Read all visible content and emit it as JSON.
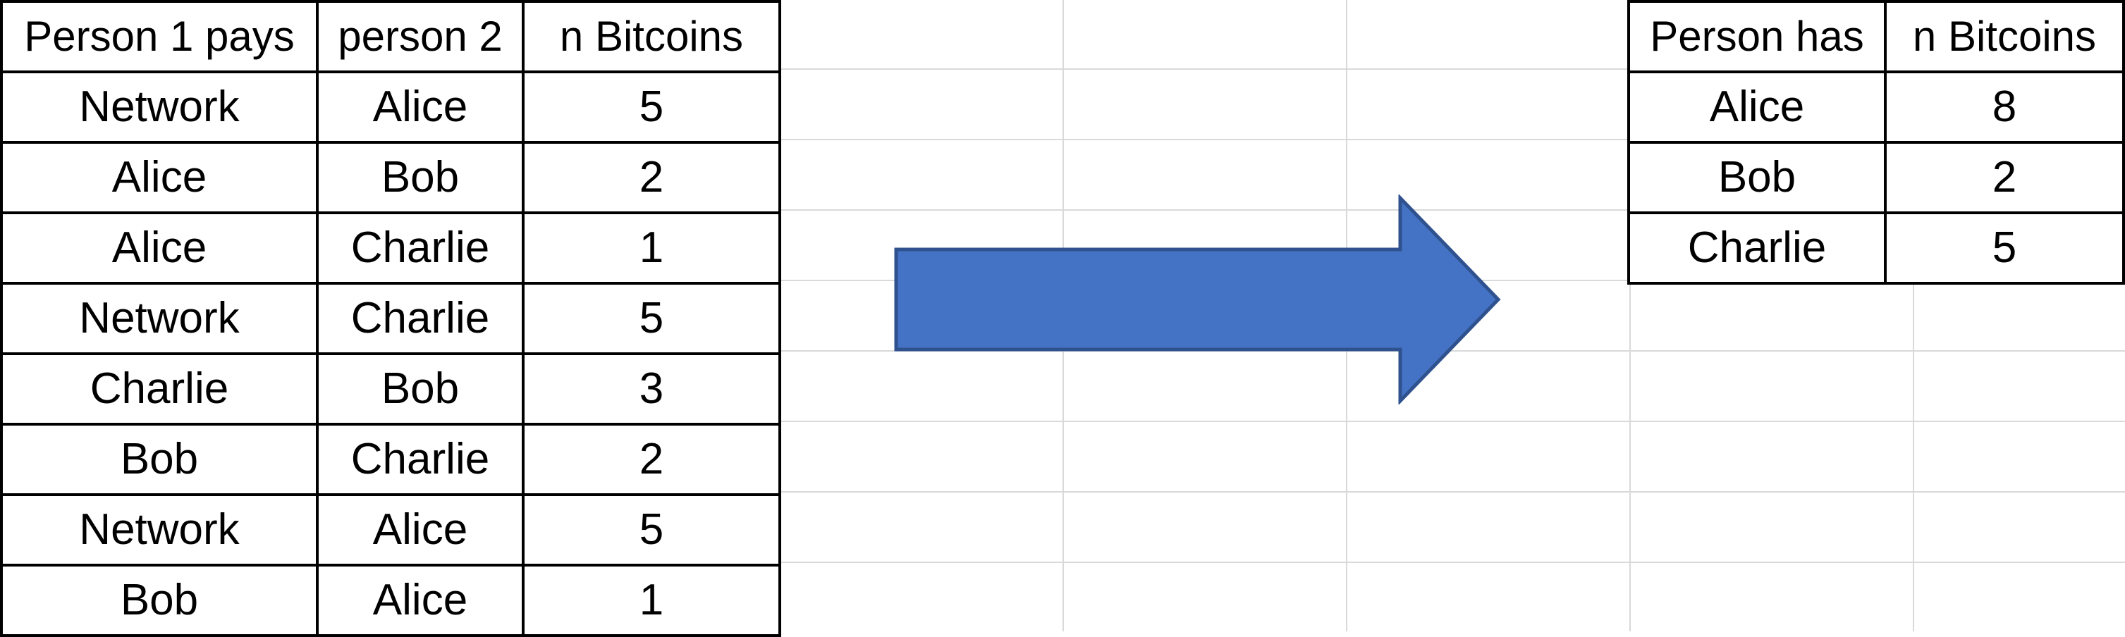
{
  "transactions": {
    "headers": [
      "Person 1 pays",
      "person 2",
      "n Bitcoins"
    ],
    "rows": [
      [
        "Network",
        "Alice",
        "5"
      ],
      [
        "Alice",
        "Bob",
        "2"
      ],
      [
        "Alice",
        "Charlie",
        "1"
      ],
      [
        "Network",
        "Charlie",
        "5"
      ],
      [
        "Charlie",
        "Bob",
        "3"
      ],
      [
        "Bob",
        "Charlie",
        "2"
      ],
      [
        "Network",
        "Alice",
        "5"
      ],
      [
        "Bob",
        "Alice",
        "1"
      ]
    ]
  },
  "balances": {
    "headers": [
      "Person has",
      "n Bitcoins"
    ],
    "rows": [
      [
        "Alice",
        "8"
      ],
      [
        "Bob",
        "2"
      ],
      [
        "Charlie",
        "5"
      ]
    ]
  },
  "arrow": {
    "icon": "right-arrow-icon",
    "fill": "#4472C4",
    "stroke": "#2F528F"
  },
  "colors": {
    "gridline": "#d9d9d9",
    "border": "#000000"
  }
}
